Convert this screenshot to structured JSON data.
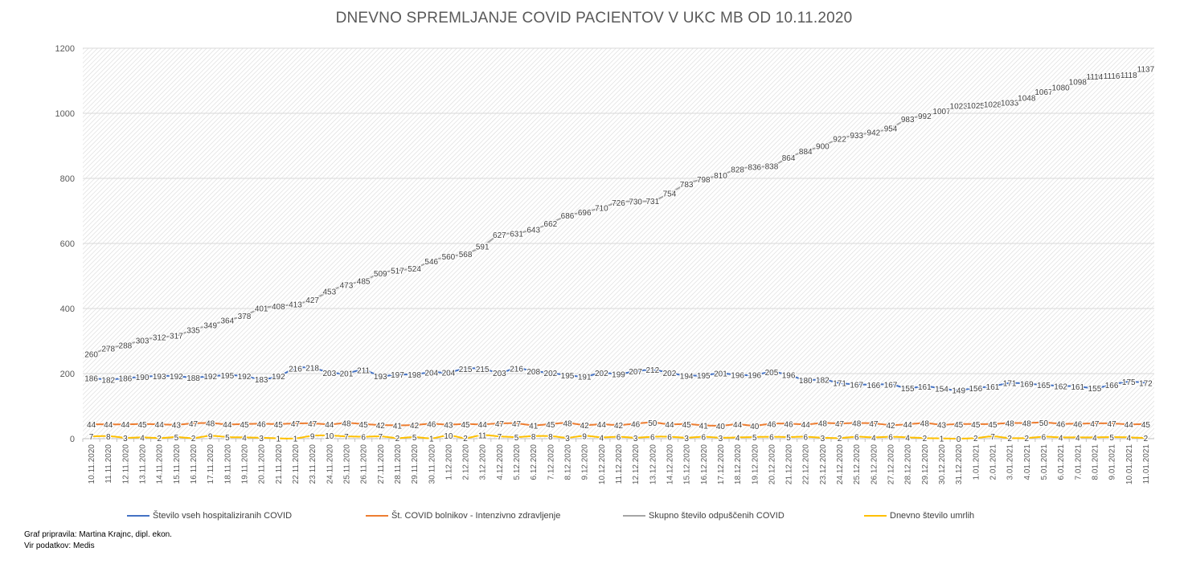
{
  "chart_data": {
    "type": "line",
    "title": "DNEVNO SPREMLJANJE COVID PACIENTOV V UKC MB OD 10.11.2020",
    "ylim": [
      0,
      1200
    ],
    "yticks": [
      0,
      200,
      400,
      600,
      800,
      1000,
      1200
    ],
    "grid": true,
    "legend_position": "bottom",
    "categories": [
      "10.11.2020",
      "11.11.2020",
      "12.11.2020",
      "13.11.2020",
      "14.11.2020",
      "15.11.2020",
      "16.11.2020",
      "17.11.2020",
      "18.11.2020",
      "19.11.2020",
      "20.11.2020",
      "21.11.2020",
      "22.11.2020",
      "23.11.2020",
      "24.11.2020",
      "25.11.2020",
      "26.11.2020",
      "27.11.2020",
      "28.11.2020",
      "29.11.2020",
      "30.11.2020",
      "1.12.2020",
      "2.12.2020",
      "3.12.2020",
      "4.12.2020",
      "5.12.2020",
      "6.12.2020",
      "7.12.2020",
      "8.12.2020",
      "9.12.2020",
      "10.12.2020",
      "11.12.2020",
      "12.12.2020",
      "13.12.2020",
      "14.12.2020",
      "15.12.2020",
      "16.12.2020",
      "17.12.2020",
      "18.12.2020",
      "19.12.2020",
      "20.12.2020",
      "21.12.2020",
      "22.12.2020",
      "23.12.2020",
      "24.12.2020",
      "25.12.2020",
      "26.12.2020",
      "27.12.2020",
      "28.12.2020",
      "29.12.2020",
      "30.12.2020",
      "31.12.2020",
      "1.01.2021",
      "2.01.2021",
      "3.01.2021",
      "4.01.2021",
      "5.01.2021",
      "6.01.2021",
      "7.01.2021",
      "8.01.2021",
      "9.01.2021",
      "10.01.2021",
      "11.01.2021"
    ],
    "series": [
      {
        "name": "Število vseh hospitaliziranih COVID",
        "color": "#4472C4",
        "values": [
          186,
          182,
          186,
          190,
          193,
          192,
          188,
          192,
          195,
          192,
          183,
          192,
          216,
          218,
          203,
          201,
          211,
          193,
          197,
          198,
          204,
          204,
          215,
          215,
          203,
          216,
          208,
          202,
          195,
          191,
          202,
          199,
          207,
          212,
          202,
          194,
          195,
          201,
          196,
          196,
          205,
          196,
          180,
          182,
          171,
          167,
          166,
          167,
          155,
          161,
          154,
          149,
          156,
          161,
          171,
          169,
          165,
          162,
          161,
          155,
          166,
          175,
          172
        ]
      },
      {
        "name": "Št. COVID bolnikov - Intenzivno zdravljenje",
        "color": "#ED7D31",
        "values": [
          44,
          44,
          44,
          45,
          44,
          43,
          47,
          48,
          44,
          45,
          46,
          45,
          47,
          47,
          44,
          48,
          45,
          42,
          41,
          42,
          46,
          43,
          45,
          44,
          47,
          47,
          41,
          45,
          48,
          42,
          44,
          42,
          46,
          50,
          44,
          45,
          41,
          40,
          44,
          40,
          46,
          46,
          44,
          48,
          47,
          48,
          47,
          42,
          44,
          48,
          43,
          45,
          45,
          45,
          48,
          48,
          50,
          46,
          46,
          47,
          47,
          44,
          45
        ]
      },
      {
        "name": "Skupno število odpuščenih COVID",
        "color": "#A5A5A5",
        "values": [
          260,
          278,
          288,
          303,
          312,
          317,
          335,
          349,
          364,
          378,
          401,
          408,
          413,
          427,
          453,
          473,
          485,
          509,
          517,
          524,
          546,
          560,
          568,
          591,
          627,
          631,
          643,
          662,
          686,
          696,
          710,
          726,
          730,
          731,
          754,
          783,
          798,
          810,
          828,
          836,
          838,
          864,
          884,
          900,
          922,
          933,
          942,
          954,
          983,
          992,
          1007,
          1023,
          1025,
          1028,
          1033,
          1048,
          1067,
          1080,
          1098,
          1114,
          1116,
          1118,
          1137
        ]
      },
      {
        "name": "Dnevno število umrlih",
        "color": "#FFC000",
        "values": [
          7,
          8,
          3,
          4,
          2,
          5,
          2,
          9,
          5,
          4,
          3,
          1,
          1,
          9,
          10,
          7,
          6,
          7,
          2,
          5,
          1,
          10,
          2,
          11,
          7,
          5,
          8,
          8,
          3,
          9,
          4,
          6,
          3,
          6,
          6,
          3,
          6,
          3,
          4,
          5,
          6,
          5,
          6,
          3,
          2,
          6,
          4,
          6,
          4,
          2,
          1,
          0,
          2,
          7,
          2,
          2,
          6,
          4,
          4,
          4,
          5,
          4,
          2
        ]
      }
    ]
  },
  "footer": {
    "prepared_by": "Graf pripravila: Martina Krajnc, dipl. ekon.",
    "source": "Vir podatkov: Medis"
  }
}
